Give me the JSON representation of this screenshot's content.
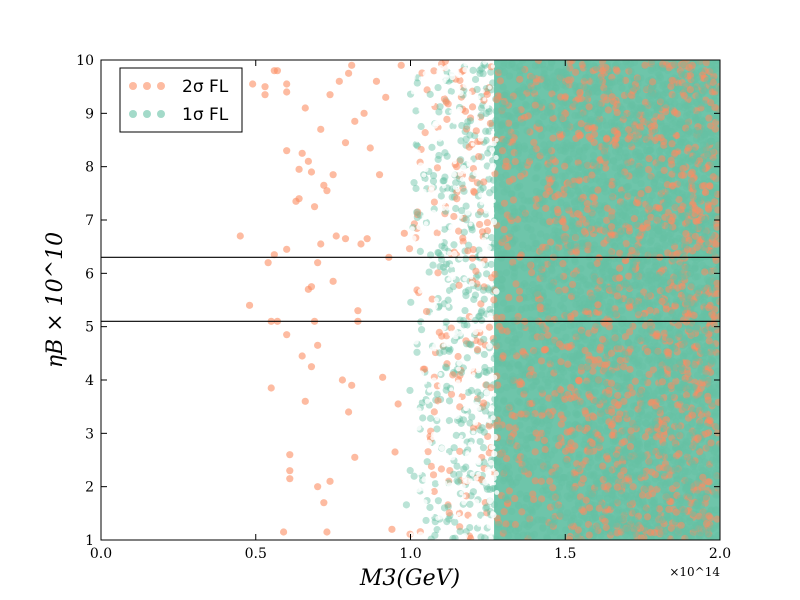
{
  "chart_data": {
    "type": "scatter",
    "xlabel": "M3(GeV)",
    "ylabel": "ηB × 10^10",
    "x_multiplier": "×10^14",
    "xlim": [
      0.0,
      2.0
    ],
    "ylim": [
      1,
      10
    ],
    "x_ticks": [
      "0.0",
      "0.5",
      "1.0",
      "1.5",
      "2.0"
    ],
    "y_ticks": [
      "1",
      "2",
      "3",
      "4",
      "5",
      "6",
      "7",
      "8",
      "9",
      "10"
    ],
    "legend_position": "top-left",
    "grid": false,
    "hlines": [
      5.1,
      6.3
    ],
    "series": [
      {
        "name": "2σ FL",
        "color": "#fc8d62",
        "sample_points": [
          [
            0.45,
            6.7
          ],
          [
            0.48,
            5.4
          ],
          [
            0.49,
            9.55
          ],
          [
            0.53,
            9.5
          ],
          [
            0.53,
            9.35
          ],
          [
            0.54,
            6.2
          ],
          [
            0.55,
            5.1
          ],
          [
            0.55,
            3.85
          ],
          [
            0.56,
            9.8
          ],
          [
            0.56,
            6.35
          ],
          [
            0.57,
            9.8
          ],
          [
            0.57,
            5.1
          ],
          [
            0.59,
            1.15
          ],
          [
            0.6,
            9.55
          ],
          [
            0.6,
            9.4
          ],
          [
            0.6,
            8.3
          ],
          [
            0.6,
            6.45
          ],
          [
            0.6,
            4.85
          ],
          [
            0.61,
            2.6
          ],
          [
            0.61,
            2.3
          ],
          [
            0.61,
            2.15
          ],
          [
            0.63,
            7.35
          ],
          [
            0.64,
            7.4
          ],
          [
            0.64,
            7.95
          ],
          [
            0.65,
            8.25
          ],
          [
            0.65,
            4.45
          ],
          [
            0.66,
            9.1
          ],
          [
            0.66,
            3.6
          ],
          [
            0.67,
            8.1
          ],
          [
            0.67,
            5.7
          ],
          [
            0.68,
            7.9
          ],
          [
            0.68,
            5.75
          ],
          [
            0.68,
            4.25
          ],
          [
            0.69,
            7.25
          ],
          [
            0.69,
            5.1
          ],
          [
            0.7,
            6.2
          ],
          [
            0.7,
            4.65
          ],
          [
            0.7,
            2.0
          ],
          [
            0.71,
            8.7
          ],
          [
            0.71,
            6.55
          ],
          [
            0.72,
            7.65
          ],
          [
            0.72,
            1.7
          ],
          [
            0.73,
            1.15
          ],
          [
            0.73,
            7.55
          ],
          [
            0.74,
            9.35
          ],
          [
            0.74,
            2.1
          ],
          [
            0.75,
            7.85
          ],
          [
            0.75,
            5.85
          ],
          [
            0.76,
            6.7
          ],
          [
            0.77,
            9.6
          ],
          [
            0.78,
            4.0
          ],
          [
            0.79,
            8.45
          ],
          [
            0.79,
            6.65
          ],
          [
            0.8,
            9.75
          ],
          [
            0.8,
            3.4
          ],
          [
            0.81,
            3.9
          ],
          [
            0.81,
            9.9
          ],
          [
            0.82,
            8.85
          ],
          [
            0.82,
            2.55
          ],
          [
            0.83,
            5.1
          ],
          [
            0.83,
            5.3
          ],
          [
            0.84,
            6.55
          ],
          [
            0.85,
            9.0
          ],
          [
            0.86,
            6.65
          ],
          [
            0.87,
            8.35
          ],
          [
            0.89,
            9.6
          ],
          [
            0.9,
            7.85
          ],
          [
            0.91,
            4.05
          ],
          [
            0.92,
            9.3
          ],
          [
            0.93,
            6.3
          ],
          [
            0.94,
            1.2
          ],
          [
            0.95,
            2.65
          ],
          [
            0.96,
            3.55
          ],
          [
            0.97,
            9.9
          ],
          [
            0.98,
            6.75
          ]
        ]
      },
      {
        "name": "1σ FL",
        "color": "#66c2a5",
        "sample_points": []
      }
    ]
  }
}
